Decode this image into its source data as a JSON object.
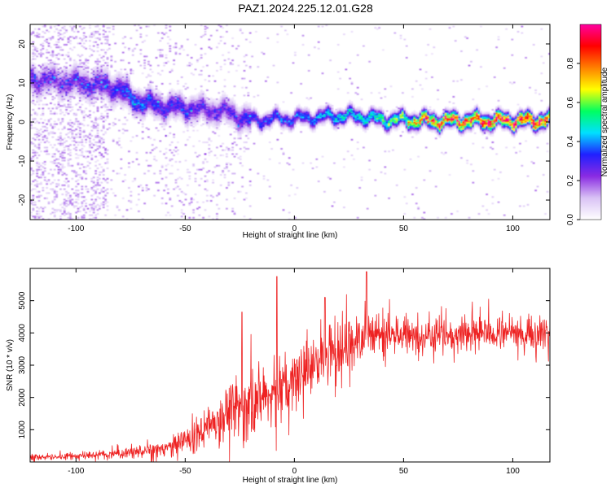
{
  "figure_title": "PAZ1.2024.225.12.01.G28",
  "chart_data": [
    {
      "type": "heatmap",
      "title": "PAZ1.2024.225.12.01.G28",
      "xlabel": "Height of straight line (km)",
      "ylabel": "Frequency (Hz)",
      "xlim": [
        -121,
        117
      ],
      "ylim": [
        -25,
        25
      ],
      "x_ticks": [
        -100,
        -50,
        0,
        50,
        100
      ],
      "x_tick_labels": [
        "-100",
        "-50",
        "0",
        "50",
        "100"
      ],
      "y_ticks": [
        -20,
        -10,
        0,
        10,
        20
      ],
      "y_tick_labels": [
        "-20",
        "-10",
        "0",
        "10",
        "20"
      ],
      "colorbar": {
        "label": "Normalized spectral amplitude",
        "range": [
          0,
          1
        ],
        "ticks": [
          0.0,
          0.2,
          0.4,
          0.6,
          0.8
        ],
        "tick_labels": [
          "0.0",
          "0.2",
          "0.4",
          "0.6",
          "0.8"
        ],
        "colormap": [
          "#ffffff",
          "#d9c2f5",
          "#8a2be2",
          "#2020ff",
          "#00e0ff",
          "#00ff60",
          "#ffff00",
          "#ff8000",
          "#ff0000",
          "#ff00a0"
        ]
      },
      "ridge": {
        "description_points_x": [
          -121,
          -110,
          -100,
          -90,
          -80,
          -75,
          -70,
          -60,
          -50,
          -40,
          -30,
          -22,
          -15,
          -10,
          0,
          10,
          20,
          30,
          40,
          50,
          60,
          70,
          80,
          90,
          100,
          110,
          117
        ],
        "description_points_freq": [
          11,
          10.5,
          10,
          9.5,
          8.5,
          6,
          5,
          4,
          3.5,
          3,
          2.5,
          0.5,
          0.5,
          0.8,
          0.8,
          1.2,
          1.5,
          1.5,
          0.5,
          0.5,
          0.3,
          0.3,
          0.3,
          0.3,
          0.3,
          0.3,
          0.5
        ],
        "description_points_amplitude": [
          0.25,
          0.22,
          0.25,
          0.25,
          0.3,
          0.35,
          0.35,
          0.3,
          0.3,
          0.25,
          0.25,
          0.3,
          0.35,
          0.35,
          0.35,
          0.4,
          0.45,
          0.45,
          0.55,
          0.6,
          0.8,
          0.85,
          0.85,
          0.9,
          0.9,
          0.9,
          0.85
        ]
      }
    },
    {
      "type": "line",
      "title": "",
      "xlabel": "Height of straight line (km)",
      "ylabel": "SNR (10 * v/v)",
      "xlim": [
        -121,
        117
      ],
      "ylim": [
        0,
        6000
      ],
      "x_ticks": [
        -100,
        -50,
        0,
        50,
        100
      ],
      "x_tick_labels": [
        "-100",
        "-50",
        "0",
        "50",
        "100"
      ],
      "y_ticks": [
        1000,
        2000,
        3000,
        4000,
        5000
      ],
      "y_tick_labels": [
        "1000",
        "2000",
        "3000",
        "4000",
        "5000"
      ],
      "line_color": "#ee2222",
      "series": [
        {
          "x": [
            -121,
            -110,
            -100,
            -90,
            -80,
            -70,
            -60,
            -55,
            -50,
            -45,
            -40,
            -35,
            -30,
            -25,
            -20,
            -15,
            -10,
            -5,
            0,
            5,
            10,
            15,
            20,
            25,
            30,
            35,
            40,
            45,
            50,
            55,
            60,
            65,
            70,
            75,
            80,
            85,
            90,
            95,
            100,
            105,
            110,
            117
          ],
          "y": [
            150,
            150,
            180,
            220,
            260,
            330,
            420,
            520,
            650,
            850,
            1100,
            1350,
            1600,
            1750,
            1900,
            2000,
            2100,
            2300,
            2550,
            2800,
            3000,
            3250,
            3450,
            3650,
            3850,
            3950,
            4050,
            3950,
            3950,
            3900,
            3950,
            4000,
            3950,
            3950,
            4000,
            3950,
            4000,
            3950,
            4000,
            4000,
            4050,
            4000
          ],
          "spread": [
            80,
            80,
            90,
            100,
            120,
            150,
            200,
            250,
            300,
            400,
            450,
            550,
            650,
            700,
            750,
            700,
            650,
            650,
            650,
            650,
            650,
            650,
            650,
            650,
            650,
            600,
            550,
            500,
            450,
            450,
            400,
            400,
            400,
            400,
            400,
            400,
            400,
            400,
            400,
            400,
            400,
            400
          ]
        }
      ],
      "spikes": [
        {
          "x": -24,
          "y": 4650
        },
        {
          "x": -8,
          "y": 5750
        },
        {
          "x": 14,
          "y": 5100
        },
        {
          "x": 33,
          "y": 5900
        }
      ]
    }
  ]
}
